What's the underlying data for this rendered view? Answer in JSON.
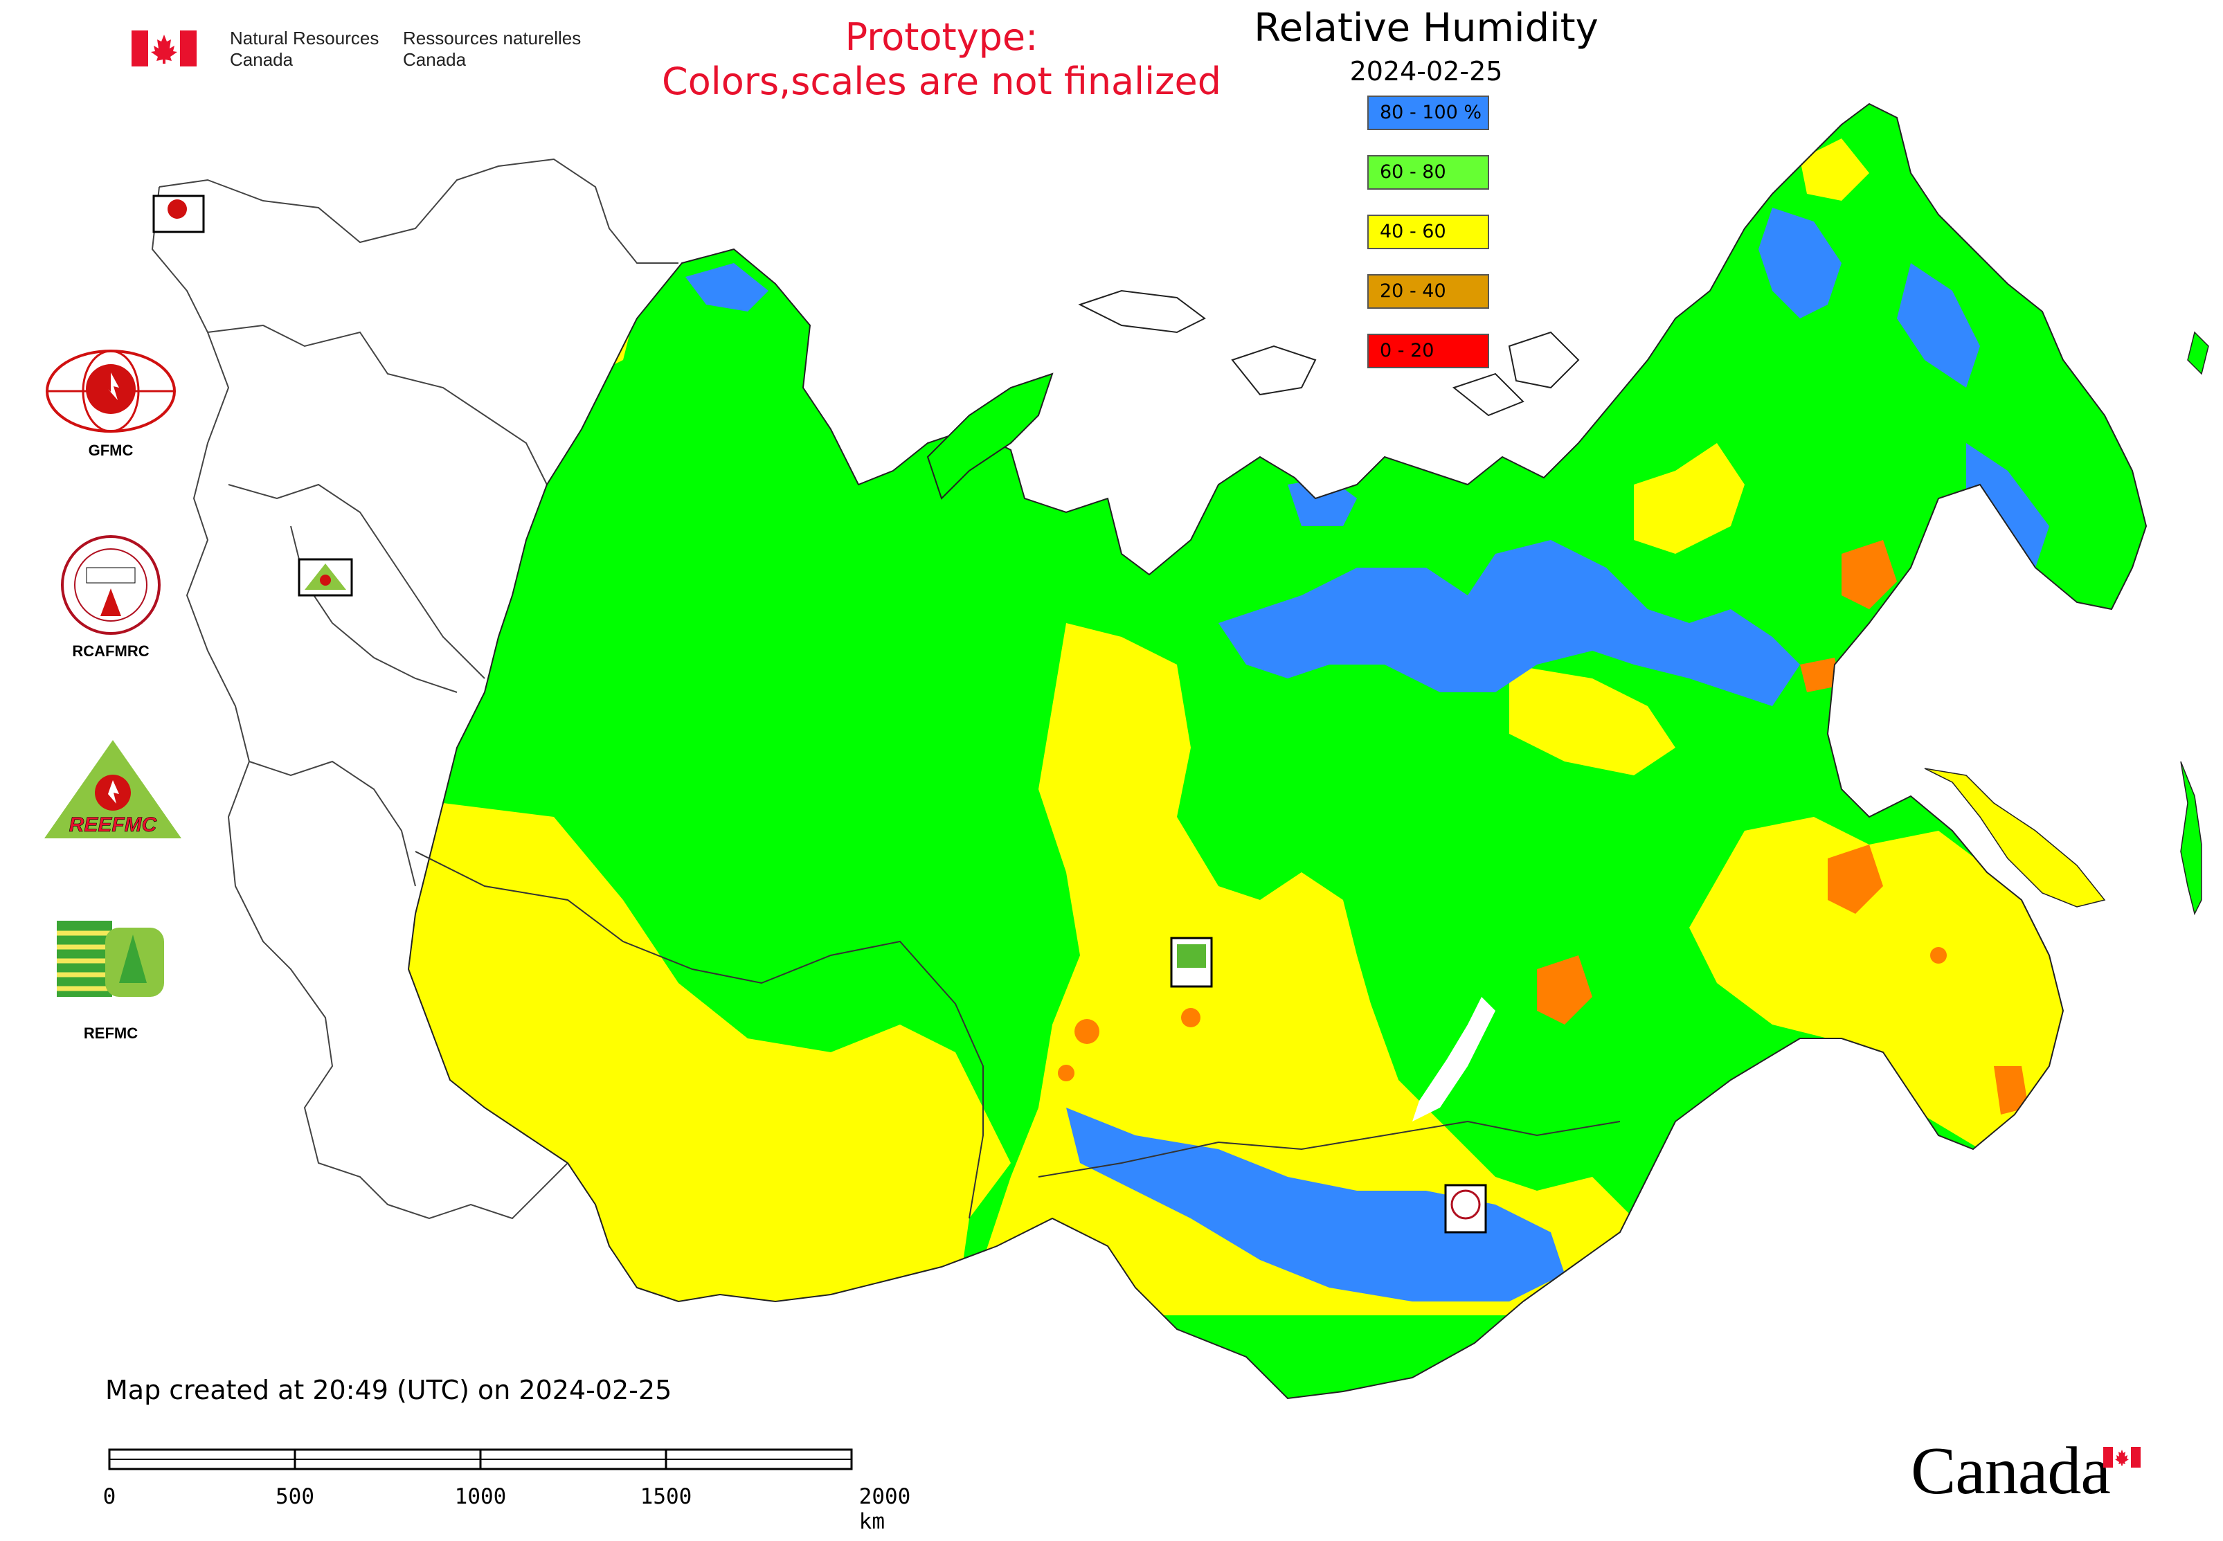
{
  "header": {
    "department_en_line1": "Natural Resources",
    "department_en_line2": "Canada",
    "department_fr_line1": "Ressources naturelles",
    "department_fr_line2": "Canada",
    "flag_icon": "canada-flag-icon"
  },
  "notice": {
    "line1": "Prototype:",
    "line2": "Colors,scales are not finalized",
    "color": "#e8112d"
  },
  "map": {
    "title": "Relative Humidity",
    "date": "2024-02-25",
    "legend": [
      {
        "label": "80 - 100 %",
        "color": "#3388ff"
      },
      {
        "label": "60 - 80",
        "color": "#66ff33"
      },
      {
        "label": "40 - 60",
        "color": "#ffff00"
      },
      {
        "label": "20 - 40",
        "color": "#dd9900"
      },
      {
        "label": "0 - 20",
        "color": "#ff0000"
      }
    ],
    "region_colors": {
      "high": "#3388ff",
      "mid_high": "#00ff00",
      "mid": "#ffff00",
      "low": "#ff7f00"
    },
    "map_markers": [
      {
        "name": "GFMC",
        "icon": "gfmc-marker-icon"
      },
      {
        "name": "REEFMC",
        "icon": "reefmc-marker-icon"
      },
      {
        "name": "REFMC",
        "icon": "refmc-marker-icon"
      },
      {
        "name": "RCAFMRC",
        "icon": "rcafmrc-marker-icon"
      }
    ]
  },
  "logos": [
    {
      "caption": "GFMC",
      "icon": "gfmc-logo-icon"
    },
    {
      "caption": "RCAFMRC",
      "icon": "rcafmrc-logo-icon"
    },
    {
      "caption": "",
      "icon": "reefmc-logo-icon",
      "wordmark": "REEFMC"
    },
    {
      "caption": "REFMC",
      "icon": "refmc-logo-icon"
    }
  ],
  "footer": {
    "created_text": "Map created at 20:49 (UTC) on 2024-02-25",
    "scale_labels": [
      "0",
      "500",
      "1000",
      "1500",
      "2000 km"
    ],
    "wordmark": "Canada",
    "wordmark_flag_icon": "canada-flag-icon"
  }
}
